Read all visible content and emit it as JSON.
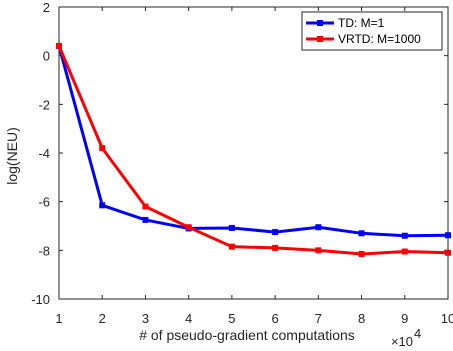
{
  "chart_data": {
    "type": "line",
    "xlabel": "# of pseudo-gradient computations",
    "ylabel": "log(NEU)",
    "x_multiplier_label": "×10",
    "x_multiplier_exp": "4",
    "xlim": [
      1,
      10
    ],
    "ylim": [
      -10,
      2
    ],
    "xticks": [
      1,
      2,
      3,
      4,
      5,
      6,
      7,
      8,
      9,
      10
    ],
    "yticks": [
      -10,
      -8,
      -6,
      -4,
      -2,
      0,
      2
    ],
    "grid": false,
    "legend_position": "top-right",
    "x": [
      1,
      2,
      3,
      4,
      5,
      6,
      7,
      8,
      9,
      10
    ],
    "series": [
      {
        "name": "TD: M=1",
        "color": "#0000ff",
        "values": [
          0.4,
          -6.15,
          -6.75,
          -7.1,
          -7.08,
          -7.25,
          -7.05,
          -7.3,
          -7.4,
          -7.38
        ]
      },
      {
        "name": "VRTD: M=1000",
        "color": "#ff0000",
        "values": [
          0.4,
          -3.8,
          -6.2,
          -7.05,
          -7.85,
          -7.9,
          -8.0,
          -8.15,
          -8.05,
          -8.1
        ]
      }
    ]
  }
}
